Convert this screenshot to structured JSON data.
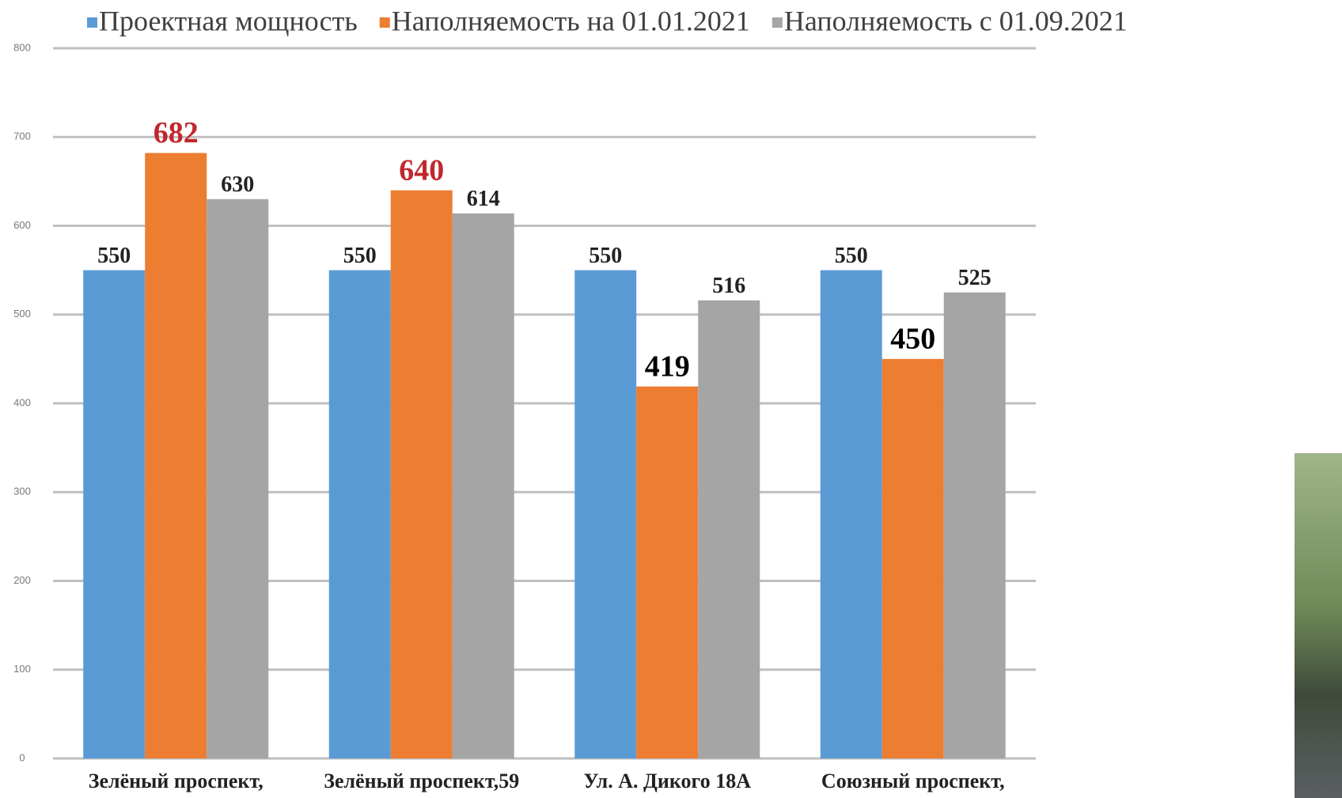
{
  "chart_data": {
    "type": "bar",
    "categories": [
      "Зелёный проспект,",
      "Зелёный проспект,59",
      "Ул. А. Дикого 18А",
      "Союзный проспект,"
    ],
    "series": [
      {
        "name": "Проектная мощность",
        "color": "#5b9bd5",
        "values": [
          550,
          550,
          550,
          550
        ]
      },
      {
        "name": "Наполняемость на 01.01.2021",
        "color": "#ed7d31",
        "values": [
          682,
          640,
          419,
          450
        ],
        "label_colors": [
          "#c0282d",
          "#c0282d",
          "#000000",
          "#000000"
        ]
      },
      {
        "name": "Наполняемость  с 01.09.2021",
        "color": "#a5a5a5",
        "values": [
          630,
          614,
          516,
          525
        ]
      }
    ],
    "ylim": [
      0,
      800
    ],
    "yticks": [
      0,
      100,
      200,
      300,
      400,
      500,
      600,
      700,
      800
    ],
    "grid": true,
    "legend": "top"
  }
}
